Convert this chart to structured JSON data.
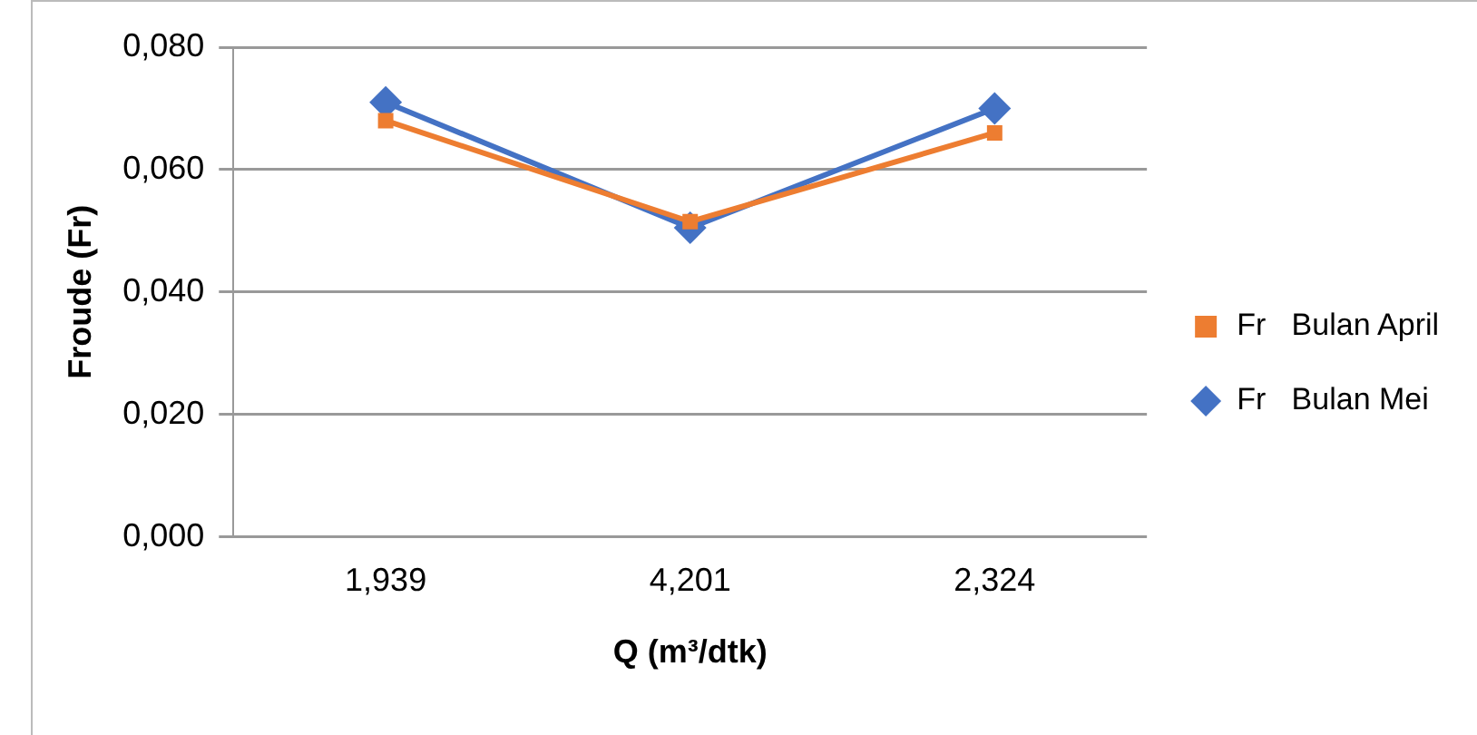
{
  "chart_data": {
    "type": "line",
    "xlabel": "Q (m³/dtk)",
    "ylabel": "Froude (Fr)",
    "categories": [
      "1,939",
      "4,201",
      "2,324"
    ],
    "series": [
      {
        "name": "Fr   Bulan April",
        "color": "#ed7d31",
        "marker": "square",
        "values": [
          0.068,
          0.0515,
          0.066
        ]
      },
      {
        "name": "Fr   Bulan Mei",
        "color": "#4472c4",
        "marker": "diamond",
        "values": [
          0.071,
          0.0505,
          0.07
        ]
      }
    ],
    "ylim": [
      0,
      0.08
    ],
    "yticks": [
      {
        "value": 0,
        "label": "0,000"
      },
      {
        "value": 0.02,
        "label": "0,020"
      },
      {
        "value": 0.04,
        "label": "0,040"
      },
      {
        "value": 0.06,
        "label": "0,060"
      },
      {
        "value": 0.08,
        "label": "0,080"
      }
    ],
    "grid": "y",
    "legend": "right"
  }
}
